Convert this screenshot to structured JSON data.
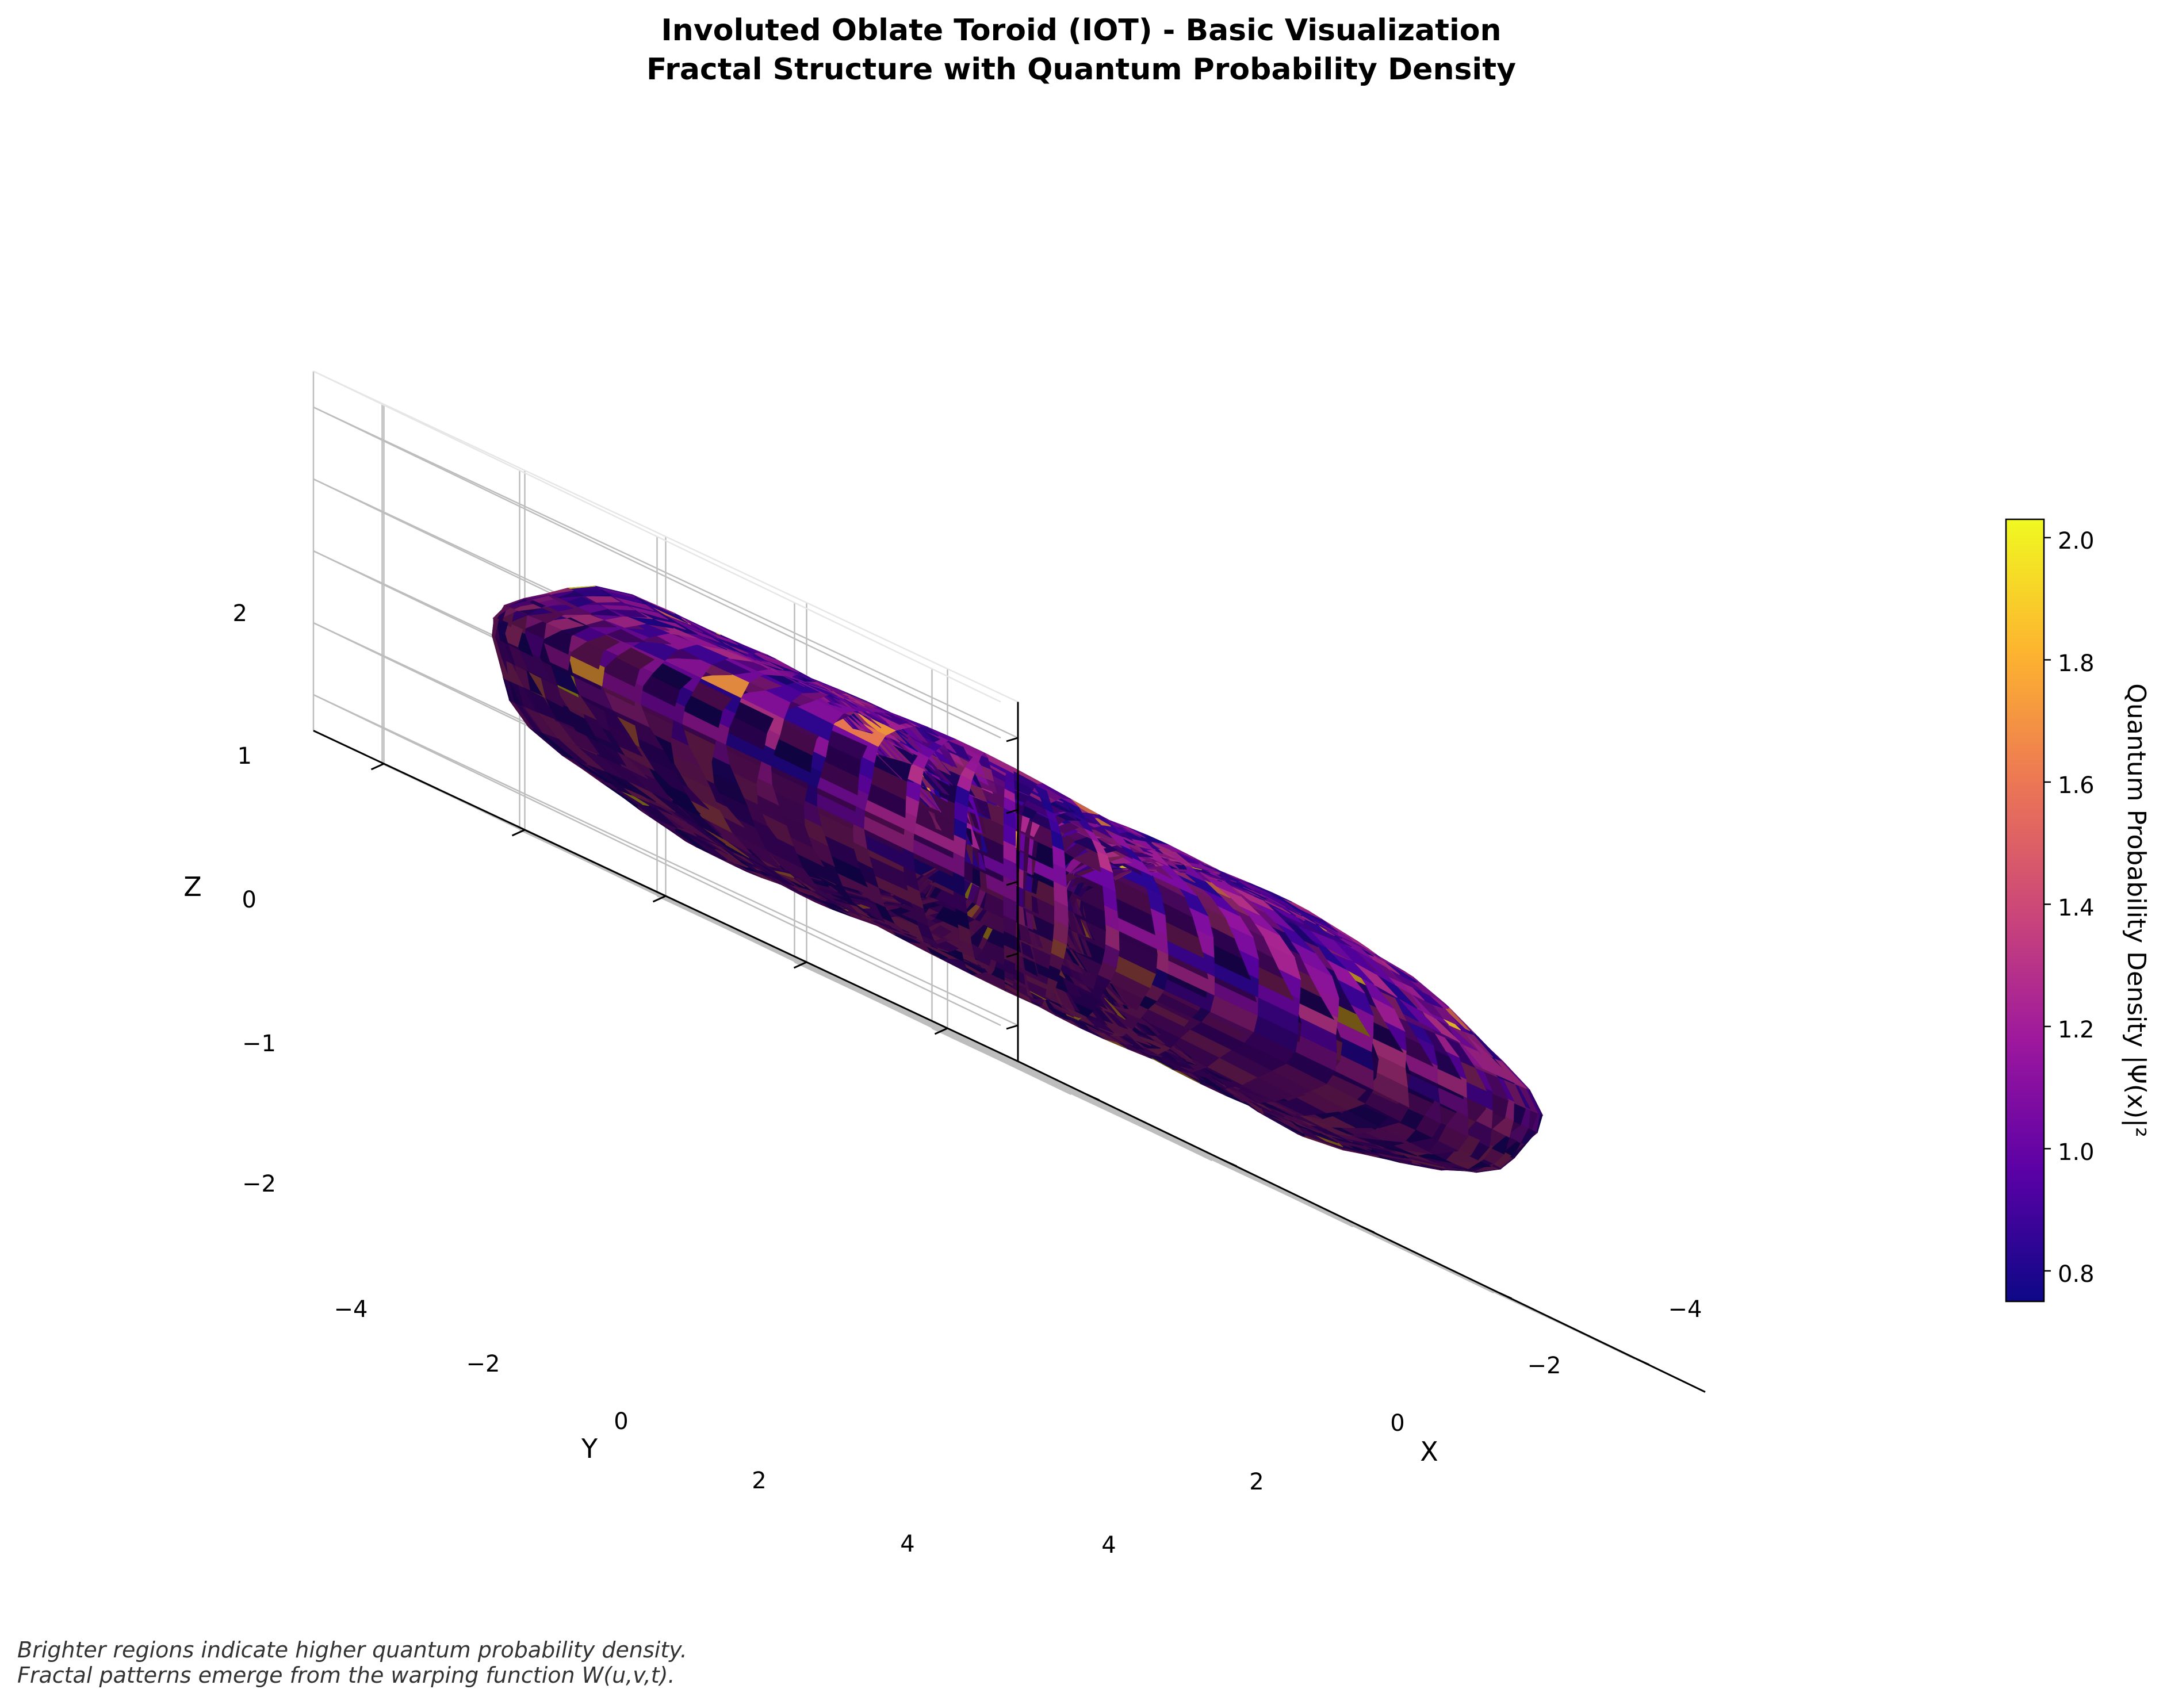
{
  "chart_data": {
    "type": "surface",
    "subtype": "3d-torus",
    "title_line1": "Involuted Oblate Toroid (IOT) - Basic Visualization",
    "title_line2": "Fractal Structure with Quantum Probability Density",
    "x_label": "X",
    "y_label": "Y",
    "z_label": "Z",
    "x_ticks": [
      "−4",
      "−2",
      "0",
      "2",
      "4"
    ],
    "y_ticks": [
      "−4",
      "−2",
      "0",
      "2",
      "4"
    ],
    "z_ticks": [
      "2",
      "1",
      "0",
      "−1",
      "−2"
    ],
    "xlim": [
      -5,
      5
    ],
    "ylim": [
      -5,
      5
    ],
    "zlim": [
      -2.5,
      2.5
    ],
    "grid": true,
    "colormap": "plasma",
    "colorbar": {
      "label": "Quantum Probability Density |Ψ(x)|²",
      "range": [
        0.75,
        2.03
      ],
      "ticks": [
        "2.0",
        "1.8",
        "1.6",
        "1.4",
        "1.2",
        "1.0",
        "0.8"
      ],
      "colors": [
        "#0d0887",
        "#5c01a6",
        "#9c179e",
        "#cc4778",
        "#ed7953",
        "#fdb42f",
        "#f0f921"
      ]
    },
    "surface": {
      "major_radius": 3.0,
      "minor_radius_horizontal": 2.3,
      "minor_radius_vertical": 1.5,
      "dominant_value_range": [
        0.8,
        1.3
      ],
      "peak_value": 2.0
    }
  },
  "caption": {
    "line1": "Brighter regions indicate higher quantum probability density.",
    "line2": "Fractal patterns emerge from the warping function W(u,v,t)."
  }
}
